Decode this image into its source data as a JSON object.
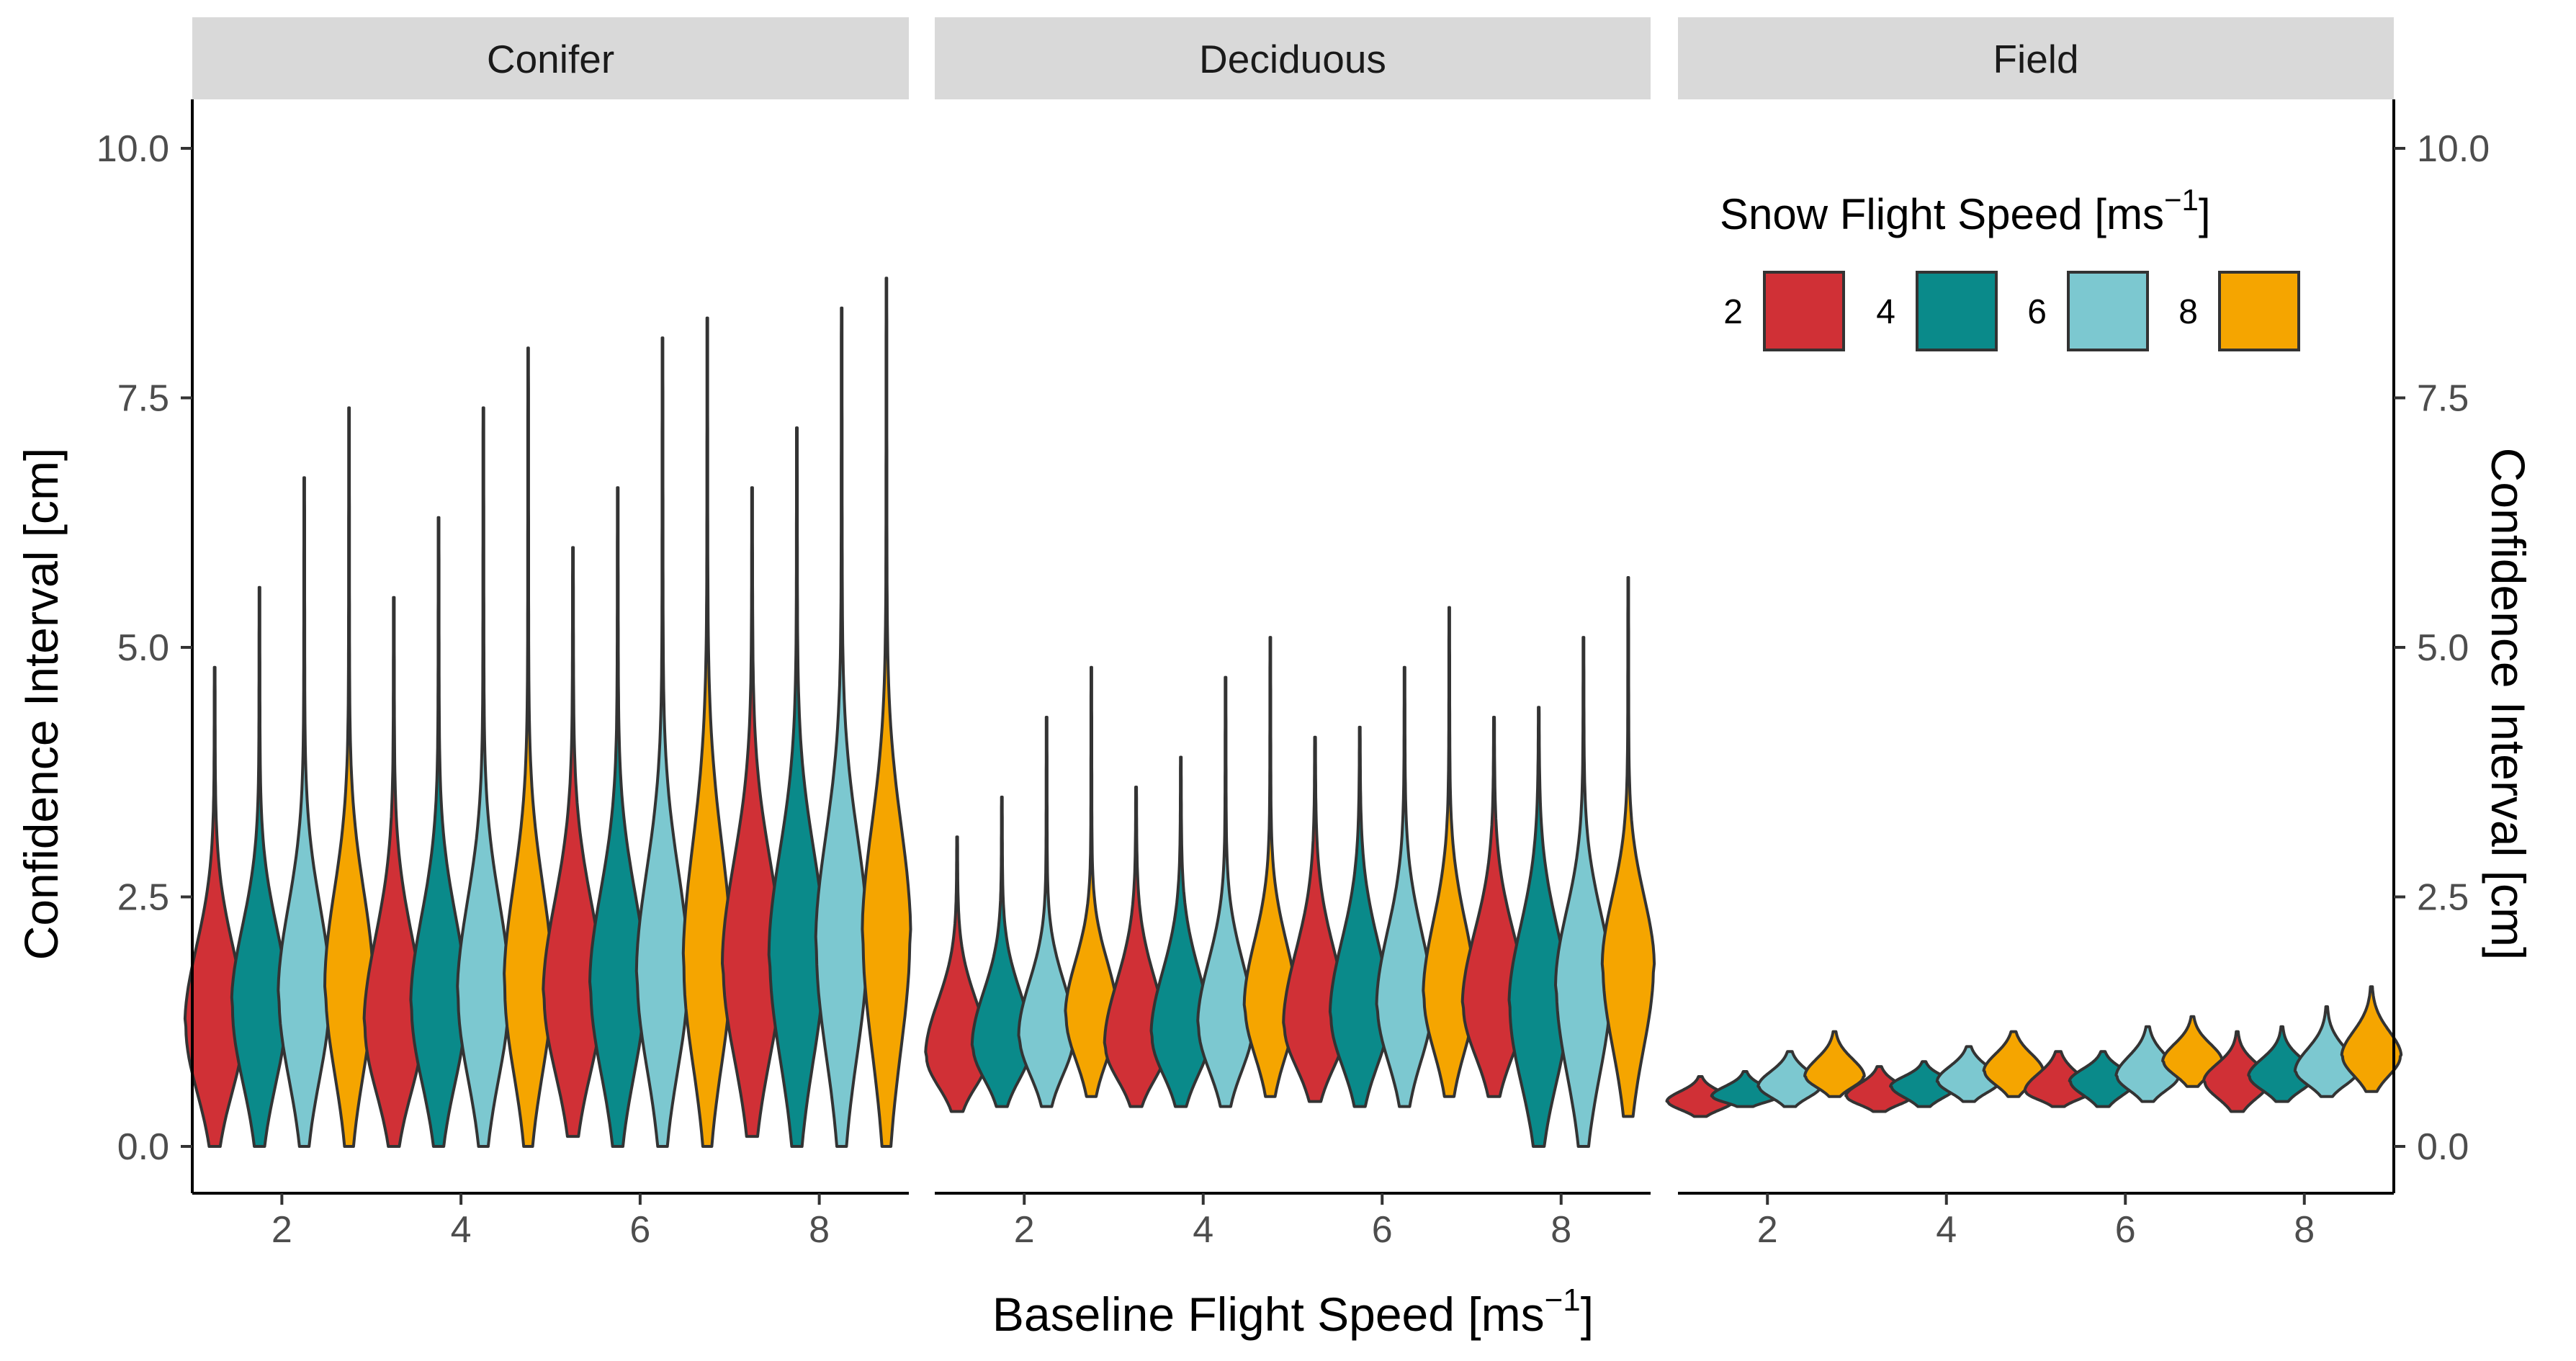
{
  "chart_data": {
    "type": "violin",
    "facets": [
      "Conifer",
      "Deciduous",
      "Field"
    ],
    "x_axis": {
      "title": "Baseline Flight Speed [ms",
      "title_superscript": "−1",
      "title_close": "]",
      "ticks": [
        2,
        4,
        6,
        8
      ],
      "range": [
        1,
        9
      ]
    },
    "y_axis": {
      "title": "Confidence Interval [cm]",
      "ticks": [
        0.0,
        2.5,
        5.0,
        7.5,
        10.0
      ],
      "tick_labels": [
        "0.0",
        "2.5",
        "5.0",
        "7.5",
        "10.0"
      ],
      "range": [
        -0.5,
        10.5
      ],
      "secondary_axis": true
    },
    "legend": {
      "title": "Snow Flight Speed [ms",
      "title_superscript": "−1",
      "title_close": "]",
      "position": "top-right",
      "entries": [
        {
          "label": "2",
          "color": "#d03036"
        },
        {
          "label": "4",
          "color": "#0a8a8a"
        },
        {
          "label": "6",
          "color": "#7cc8d0"
        },
        {
          "label": "8",
          "color": "#f5a500"
        }
      ]
    },
    "series_colors": {
      "2": "#d03036",
      "4": "#0a8a8a",
      "6": "#7cc8d0",
      "8": "#f5a500"
    },
    "groups": [
      {
        "facet": "Conifer",
        "baseline": 2,
        "snow": 2,
        "min": 0.0,
        "max": 4.8,
        "mode": 1.2,
        "fat_top": 2.8,
        "width": 0.8
      },
      {
        "facet": "Conifer",
        "baseline": 2,
        "snow": 4,
        "min": 0.0,
        "max": 5.6,
        "mode": 1.4,
        "fat_top": 3.0,
        "width": 0.75
      },
      {
        "facet": "Conifer",
        "baseline": 2,
        "snow": 6,
        "min": 0.0,
        "max": 6.7,
        "mode": 1.5,
        "fat_top": 3.3,
        "width": 0.7
      },
      {
        "facet": "Conifer",
        "baseline": 2,
        "snow": 8,
        "min": 0.0,
        "max": 7.4,
        "mode": 1.6,
        "fat_top": 3.5,
        "width": 0.65
      },
      {
        "facet": "Conifer",
        "baseline": 4,
        "snow": 2,
        "min": 0.0,
        "max": 5.5,
        "mode": 1.2,
        "fat_top": 3.0,
        "width": 0.8
      },
      {
        "facet": "Conifer",
        "baseline": 4,
        "snow": 4,
        "min": 0.0,
        "max": 6.3,
        "mode": 1.4,
        "fat_top": 3.2,
        "width": 0.75
      },
      {
        "facet": "Conifer",
        "baseline": 4,
        "snow": 6,
        "min": 0.0,
        "max": 7.4,
        "mode": 1.5,
        "fat_top": 3.4,
        "width": 0.7
      },
      {
        "facet": "Conifer",
        "baseline": 4,
        "snow": 8,
        "min": 0.0,
        "max": 8.0,
        "mode": 1.6,
        "fat_top": 3.6,
        "width": 0.65
      },
      {
        "facet": "Conifer",
        "baseline": 6,
        "snow": 2,
        "min": 0.1,
        "max": 6.0,
        "mode": 1.5,
        "fat_top": 3.4,
        "width": 0.8
      },
      {
        "facet": "Conifer",
        "baseline": 6,
        "snow": 4,
        "min": 0.0,
        "max": 6.6,
        "mode": 1.6,
        "fat_top": 3.5,
        "width": 0.75
      },
      {
        "facet": "Conifer",
        "baseline": 6,
        "snow": 6,
        "min": 0.0,
        "max": 8.1,
        "mode": 1.7,
        "fat_top": 3.8,
        "width": 0.7
      },
      {
        "facet": "Conifer",
        "baseline": 6,
        "snow": 8,
        "min": 0.0,
        "max": 8.3,
        "mode": 1.8,
        "fat_top": 4.2,
        "width": 0.65
      },
      {
        "facet": "Conifer",
        "baseline": 8,
        "snow": 2,
        "min": 0.1,
        "max": 6.6,
        "mode": 1.8,
        "fat_top": 3.9,
        "width": 0.8
      },
      {
        "facet": "Conifer",
        "baseline": 8,
        "snow": 4,
        "min": 0.0,
        "max": 7.2,
        "mode": 1.9,
        "fat_top": 4.0,
        "width": 0.75
      },
      {
        "facet": "Conifer",
        "baseline": 8,
        "snow": 6,
        "min": 0.0,
        "max": 8.4,
        "mode": 2.0,
        "fat_top": 4.2,
        "width": 0.7
      },
      {
        "facet": "Conifer",
        "baseline": 8,
        "snow": 8,
        "min": 0.0,
        "max": 8.7,
        "mode": 2.1,
        "fat_top": 4.3,
        "width": 0.65
      },
      {
        "facet": "Deciduous",
        "baseline": 2,
        "snow": 2,
        "min": 0.35,
        "max": 3.1,
        "mode": 0.9,
        "fat_top": 2.0,
        "width": 0.85
      },
      {
        "facet": "Deciduous",
        "baseline": 2,
        "snow": 4,
        "min": 0.4,
        "max": 3.5,
        "mode": 1.0,
        "fat_top": 2.1,
        "width": 0.8
      },
      {
        "facet": "Deciduous",
        "baseline": 2,
        "snow": 6,
        "min": 0.4,
        "max": 4.3,
        "mode": 1.1,
        "fat_top": 2.2,
        "width": 0.75
      },
      {
        "facet": "Deciduous",
        "baseline": 2,
        "snow": 8,
        "min": 0.5,
        "max": 4.8,
        "mode": 1.3,
        "fat_top": 2.4,
        "width": 0.7
      },
      {
        "facet": "Deciduous",
        "baseline": 4,
        "snow": 2,
        "min": 0.4,
        "max": 3.6,
        "mode": 1.0,
        "fat_top": 2.3,
        "width": 0.85
      },
      {
        "facet": "Deciduous",
        "baseline": 4,
        "snow": 4,
        "min": 0.4,
        "max": 3.9,
        "mode": 1.1,
        "fat_top": 2.4,
        "width": 0.8
      },
      {
        "facet": "Deciduous",
        "baseline": 4,
        "snow": 6,
        "min": 0.4,
        "max": 4.7,
        "mode": 1.2,
        "fat_top": 2.5,
        "width": 0.75
      },
      {
        "facet": "Deciduous",
        "baseline": 4,
        "snow": 8,
        "min": 0.5,
        "max": 5.1,
        "mode": 1.4,
        "fat_top": 2.7,
        "width": 0.7
      },
      {
        "facet": "Deciduous",
        "baseline": 6,
        "snow": 2,
        "min": 0.45,
        "max": 4.1,
        "mode": 1.2,
        "fat_top": 2.7,
        "width": 0.85
      },
      {
        "facet": "Deciduous",
        "baseline": 6,
        "snow": 4,
        "min": 0.4,
        "max": 4.2,
        "mode": 1.3,
        "fat_top": 2.8,
        "width": 0.8
      },
      {
        "facet": "Deciduous",
        "baseline": 6,
        "snow": 6,
        "min": 0.4,
        "max": 4.8,
        "mode": 1.4,
        "fat_top": 2.9,
        "width": 0.75
      },
      {
        "facet": "Deciduous",
        "baseline": 6,
        "snow": 8,
        "min": 0.5,
        "max": 5.4,
        "mode": 1.5,
        "fat_top": 3.0,
        "width": 0.7
      },
      {
        "facet": "Deciduous",
        "baseline": 8,
        "snow": 2,
        "min": 0.5,
        "max": 4.3,
        "mode": 1.4,
        "fat_top": 2.9,
        "width": 0.85
      },
      {
        "facet": "Deciduous",
        "baseline": 8,
        "snow": 4,
        "min": 0.0,
        "max": 4.4,
        "mode": 1.4,
        "fat_top": 3.0,
        "width": 0.8
      },
      {
        "facet": "Deciduous",
        "baseline": 8,
        "snow": 6,
        "min": 0.0,
        "max": 5.1,
        "mode": 1.6,
        "fat_top": 3.1,
        "width": 0.75
      },
      {
        "facet": "Deciduous",
        "baseline": 8,
        "snow": 8,
        "min": 0.3,
        "max": 5.7,
        "mode": 1.8,
        "fat_top": 3.2,
        "width": 0.7
      },
      {
        "facet": "Field",
        "baseline": 2,
        "snow": 2,
        "min": 0.3,
        "max": 0.7,
        "mode": 0.45,
        "fat_top": 0.65,
        "width": 0.9
      },
      {
        "facet": "Field",
        "baseline": 2,
        "snow": 4,
        "min": 0.4,
        "max": 0.75,
        "mode": 0.5,
        "fat_top": 0.7,
        "width": 0.9
      },
      {
        "facet": "Field",
        "baseline": 2,
        "snow": 6,
        "min": 0.4,
        "max": 0.95,
        "mode": 0.6,
        "fat_top": 0.9,
        "width": 0.85
      },
      {
        "facet": "Field",
        "baseline": 2,
        "snow": 8,
        "min": 0.5,
        "max": 1.15,
        "mode": 0.7,
        "fat_top": 1.05,
        "width": 0.8
      },
      {
        "facet": "Field",
        "baseline": 4,
        "snow": 2,
        "min": 0.35,
        "max": 0.8,
        "mode": 0.5,
        "fat_top": 0.75,
        "width": 0.9
      },
      {
        "facet": "Field",
        "baseline": 4,
        "snow": 4,
        "min": 0.4,
        "max": 0.85,
        "mode": 0.6,
        "fat_top": 0.8,
        "width": 0.9
      },
      {
        "facet": "Field",
        "baseline": 4,
        "snow": 6,
        "min": 0.45,
        "max": 1.0,
        "mode": 0.65,
        "fat_top": 0.95,
        "width": 0.85
      },
      {
        "facet": "Field",
        "baseline": 4,
        "snow": 8,
        "min": 0.5,
        "max": 1.15,
        "mode": 0.75,
        "fat_top": 1.1,
        "width": 0.8
      },
      {
        "facet": "Field",
        "baseline": 6,
        "snow": 2,
        "min": 0.4,
        "max": 0.95,
        "mode": 0.55,
        "fat_top": 0.9,
        "width": 0.9
      },
      {
        "facet": "Field",
        "baseline": 6,
        "snow": 4,
        "min": 0.4,
        "max": 0.95,
        "mode": 0.65,
        "fat_top": 0.9,
        "width": 0.9
      },
      {
        "facet": "Field",
        "baseline": 6,
        "snow": 6,
        "min": 0.45,
        "max": 1.2,
        "mode": 0.7,
        "fat_top": 1.1,
        "width": 0.85
      },
      {
        "facet": "Field",
        "baseline": 6,
        "snow": 8,
        "min": 0.6,
        "max": 1.3,
        "mode": 0.85,
        "fat_top": 1.2,
        "width": 0.8
      },
      {
        "facet": "Field",
        "baseline": 8,
        "snow": 2,
        "min": 0.35,
        "max": 1.15,
        "mode": 0.65,
        "fat_top": 1.0,
        "width": 0.9
      },
      {
        "facet": "Field",
        "baseline": 8,
        "snow": 4,
        "min": 0.45,
        "max": 1.2,
        "mode": 0.7,
        "fat_top": 1.05,
        "width": 0.9
      },
      {
        "facet": "Field",
        "baseline": 8,
        "snow": 6,
        "min": 0.5,
        "max": 1.4,
        "mode": 0.75,
        "fat_top": 1.2,
        "width": 0.85
      },
      {
        "facet": "Field",
        "baseline": 8,
        "snow": 8,
        "min": 0.55,
        "max": 1.6,
        "mode": 0.9,
        "fat_top": 1.4,
        "width": 0.8
      }
    ]
  }
}
